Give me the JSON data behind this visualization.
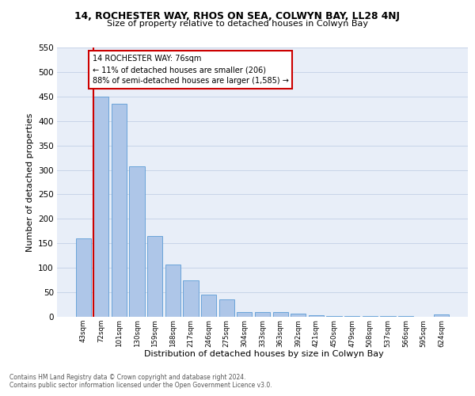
{
  "title1": "14, ROCHESTER WAY, RHOS ON SEA, COLWYN BAY, LL28 4NJ",
  "title2": "Size of property relative to detached houses in Colwyn Bay",
  "xlabel": "Distribution of detached houses by size in Colwyn Bay",
  "ylabel": "Number of detached properties",
  "categories": [
    "43sqm",
    "72sqm",
    "101sqm",
    "130sqm",
    "159sqm",
    "188sqm",
    "217sqm",
    "246sqm",
    "275sqm",
    "304sqm",
    "333sqm",
    "363sqm",
    "392sqm",
    "421sqm",
    "450sqm",
    "479sqm",
    "508sqm",
    "537sqm",
    "566sqm",
    "595sqm",
    "624sqm"
  ],
  "values": [
    160,
    450,
    435,
    307,
    165,
    106,
    75,
    45,
    35,
    10,
    9,
    10,
    7,
    4,
    2,
    2,
    1,
    1,
    1,
    0,
    5
  ],
  "bar_color": "#aec6e8",
  "bar_edge_color": "#5b9bd5",
  "vline_color": "#cc0000",
  "annotation_line1": "14 ROCHESTER WAY: 76sqm",
  "annotation_line2": "← 11% of detached houses are smaller (206)",
  "annotation_line3": "88% of semi-detached houses are larger (1,585) →",
  "annotation_box_facecolor": "#ffffff",
  "annotation_box_edgecolor": "#cc0000",
  "ylim": [
    0,
    550
  ],
  "yticks": [
    0,
    50,
    100,
    150,
    200,
    250,
    300,
    350,
    400,
    450,
    500,
    550
  ],
  "footer_line1": "Contains HM Land Registry data © Crown copyright and database right 2024.",
  "footer_line2": "Contains public sector information licensed under the Open Government Licence v3.0.",
  "plot_bg_color": "#e8eef8",
  "fig_bg_color": "#ffffff",
  "grid_color": "#c8d4e8",
  "vline_xindex": 1
}
